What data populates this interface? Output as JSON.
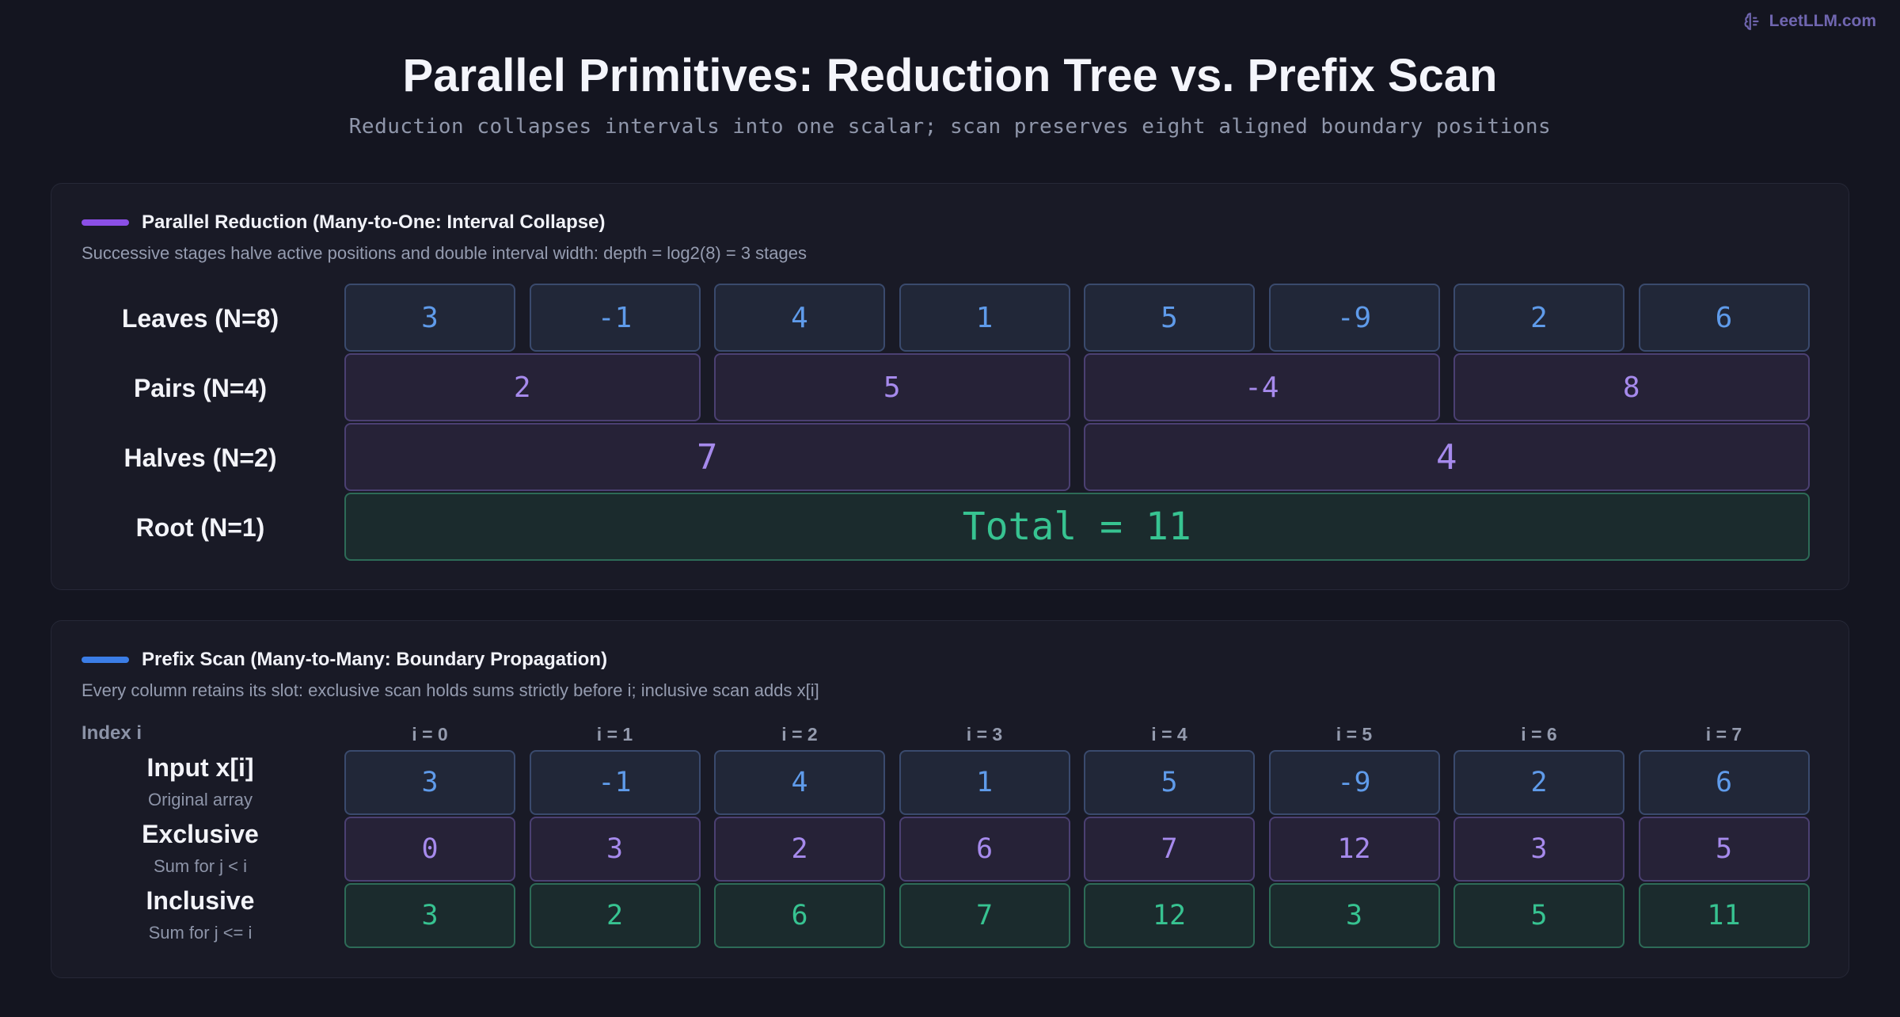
{
  "brand": {
    "name": "LeetLLM.com",
    "icon": "brain-icon"
  },
  "title": "Parallel Primitives: Reduction Tree vs. Prefix Scan",
  "subtitle": "Reduction collapses intervals into one scalar; scan preserves eight aligned boundary positions",
  "colors": {
    "blue": "#5f9bea",
    "purple": "#a68aec",
    "green": "#37c391",
    "accent_reduction": "#8b4fe6",
    "accent_scan": "#3b7de6"
  },
  "reduction": {
    "title": "Parallel Reduction (Many-to-One: Interval Collapse)",
    "description": "Successive stages halve active positions and double interval width: depth = log2(8) = 3 stages",
    "rows": [
      {
        "label": "Leaves (N=8)",
        "values": [
          "3",
          "-1",
          "4",
          "1",
          "5",
          "-9",
          "2",
          "6"
        ]
      },
      {
        "label": "Pairs (N=4)",
        "values": [
          "2",
          "5",
          "-4",
          "8"
        ]
      },
      {
        "label": "Halves (N=2)",
        "values": [
          "7",
          "4"
        ]
      },
      {
        "label": "Root (N=1)",
        "values": [
          "Total = 11"
        ]
      }
    ]
  },
  "scan": {
    "title": "Prefix Scan (Many-to-Many: Boundary Propagation)",
    "description": "Every column retains its slot: exclusive scan holds sums strictly before i; inclusive scan adds x[i]",
    "index_header": "Index i",
    "indices": [
      "i = 0",
      "i = 1",
      "i = 2",
      "i = 3",
      "i = 4",
      "i = 5",
      "i = 6",
      "i = 7"
    ],
    "rows": [
      {
        "label": "Input x[i]",
        "sublabel": "Original array",
        "values": [
          "3",
          "-1",
          "4",
          "1",
          "5",
          "-9",
          "2",
          "6"
        ]
      },
      {
        "label": "Exclusive",
        "sublabel": "Sum for j < i",
        "values": [
          "0",
          "3",
          "2",
          "6",
          "7",
          "12",
          "3",
          "5"
        ]
      },
      {
        "label": "Inclusive",
        "sublabel": "Sum for j <= i",
        "values": [
          "3",
          "2",
          "6",
          "7",
          "12",
          "3",
          "5",
          "11"
        ]
      }
    ]
  }
}
